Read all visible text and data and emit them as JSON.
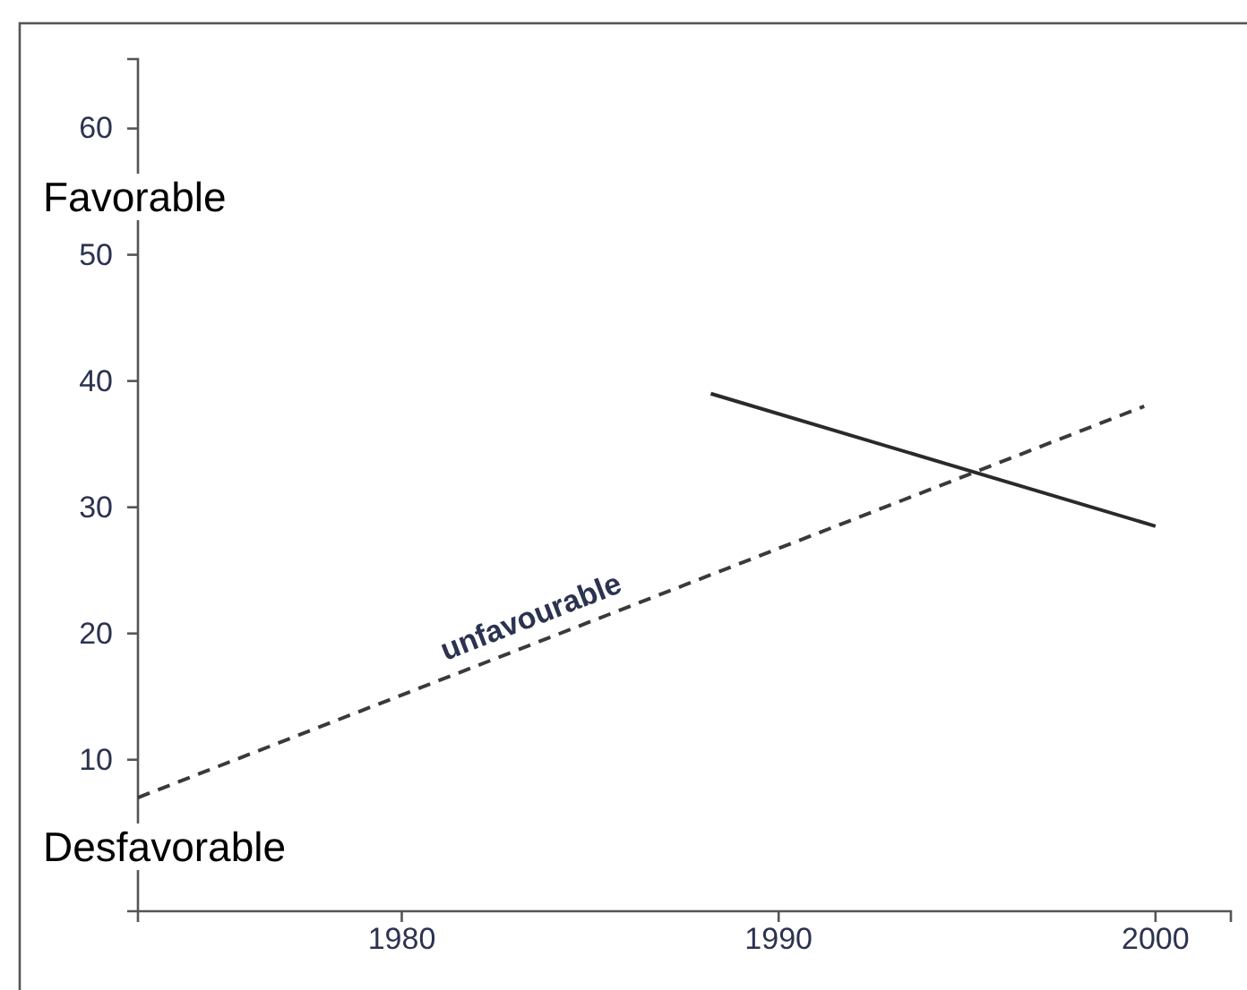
{
  "chart_data": {
    "type": "line",
    "xlim": [
      1973,
      2002
    ],
    "xticks": [
      1980,
      1990,
      2000
    ],
    "ylim": [
      -2,
      65.5
    ],
    "yticks": [
      10,
      20,
      30,
      40,
      50,
      60
    ],
    "grid": false,
    "legend": false,
    "series": [
      {
        "color": "#2a2a2a",
        "line_style": "solid",
        "x": [
          1988.2,
          2000
        ],
        "values": [
          39,
          28.5
        ]
      },
      {
        "name": "unfavourable",
        "color": "#3a3a3a",
        "line_style": "dashed",
        "x": [
          1973,
          1999.7
        ],
        "values": [
          7,
          38
        ]
      }
    ],
    "annotations": [
      "Favorable",
      "Desfavorable"
    ]
  }
}
